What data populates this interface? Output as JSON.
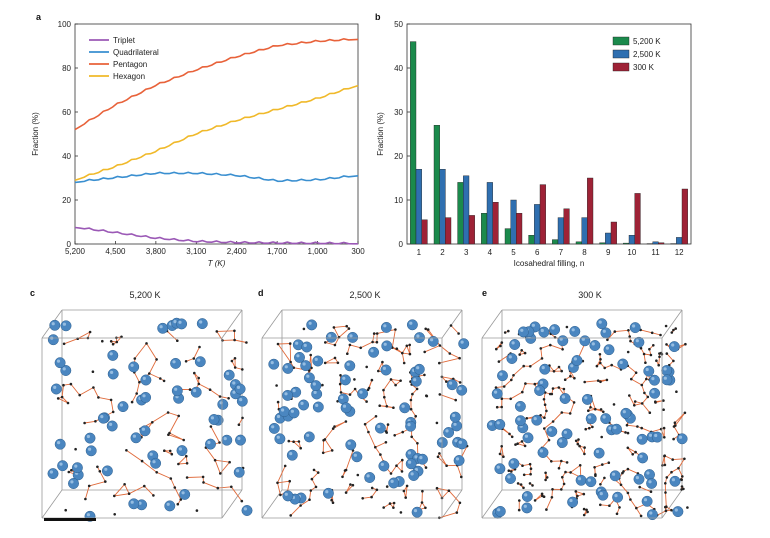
{
  "panel_labels": {
    "a": "a",
    "b": "b",
    "c": "c",
    "d": "d",
    "e": "e"
  },
  "colors": {
    "triplet": "#9b59b6",
    "quadrilateral": "#3a8fd0",
    "pentagon": "#e8623a",
    "hexagon": "#f0b92a",
    "k5200": "#1b8a4c",
    "k2500": "#2f6fb0",
    "k300": "#9e2236",
    "atom": "#4a86c0",
    "bond": "#e06a3a"
  },
  "chart_data": [
    {
      "type": "line",
      "title": "",
      "xlabel": "T (K)",
      "ylabel": "Fraction (%)",
      "ylim": [
        0,
        100
      ],
      "yticks": [
        "0",
        "20",
        "40",
        "60",
        "80",
        "100"
      ],
      "xticks": [
        "5,200",
        "4,500",
        "3,800",
        "3,100",
        "2,400",
        "1,700",
        "1,000",
        "300"
      ],
      "x": [
        5200,
        4500,
        3800,
        3100,
        2400,
        1700,
        1000,
        300
      ],
      "series": [
        {
          "name": "Triplet",
          "values": [
            7.5,
            5,
            2.5,
            1,
            0.5,
            0.3,
            0.2,
            0.1
          ]
        },
        {
          "name": "Quadrilateral",
          "values": [
            28,
            30,
            32,
            32,
            31,
            28.5,
            29,
            31
          ]
        },
        {
          "name": "Pentagon",
          "values": [
            52,
            63,
            72,
            79,
            85,
            90,
            92,
            93
          ]
        },
        {
          "name": "Hexagon",
          "values": [
            29,
            35,
            42,
            50,
            56,
            61,
            66,
            72
          ]
        }
      ],
      "legend": "top-left"
    },
    {
      "type": "bar",
      "title": "",
      "xlabel": "Icosahedral filling, n",
      "ylabel": "Fraction (%)",
      "ylim": [
        0,
        50
      ],
      "yticks": [
        "0",
        "10",
        "20",
        "30",
        "40",
        "50"
      ],
      "categories": [
        "1",
        "2",
        "3",
        "4",
        "5",
        "6",
        "7",
        "8",
        "9",
        "10",
        "11",
        "12"
      ],
      "series": [
        {
          "name": "5,200 K",
          "values": [
            46,
            27,
            14,
            7,
            3.5,
            2,
            1,
            0.5,
            0.3,
            0.2,
            0.1,
            0.1
          ]
        },
        {
          "name": "2,500 K",
          "values": [
            17,
            17,
            15.5,
            14,
            10,
            9,
            6,
            6,
            2.5,
            2,
            0.5,
            1.5
          ]
        },
        {
          "name": "300 K",
          "values": [
            5.5,
            6,
            6.5,
            9.5,
            7,
            13.5,
            8,
            15,
            5,
            11.5,
            0.3,
            12.5
          ]
        }
      ],
      "legend": "top-right"
    }
  ],
  "structures": {
    "c": {
      "title": "5,200 K"
    },
    "d": {
      "title": "2,500 K"
    },
    "e": {
      "title": "300 K"
    }
  }
}
